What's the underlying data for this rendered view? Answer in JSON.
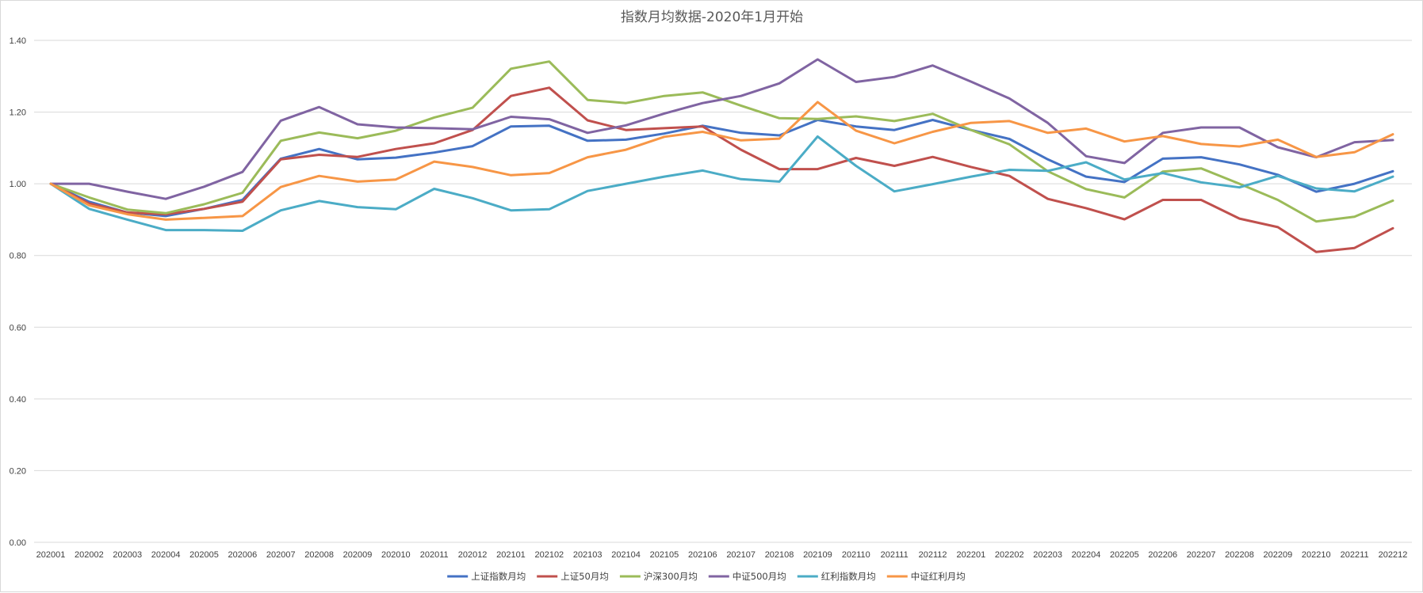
{
  "chart_data": {
    "type": "line",
    "title": "指数月均数据-2020年1月开始",
    "xlabel": "",
    "ylabel": "",
    "ylim": [
      0,
      1.4
    ],
    "yticks": [
      "0.00",
      "0.20",
      "0.40",
      "0.60",
      "0.80",
      "1.00",
      "1.20",
      "1.40"
    ],
    "ytick_values": [
      0,
      0.2,
      0.4,
      0.6,
      0.8,
      1.0,
      1.2,
      1.4
    ],
    "grid": true,
    "legend_position": "bottom",
    "categories": [
      "202001",
      "202002",
      "202003",
      "202004",
      "202005",
      "202006",
      "202007",
      "202008",
      "202009",
      "202010",
      "202011",
      "202012",
      "202101",
      "202102",
      "202103",
      "202104",
      "202105",
      "202106",
      "202107",
      "202108",
      "202109",
      "202110",
      "202111",
      "202112",
      "202201",
      "202202",
      "202203",
      "202204",
      "202205",
      "202206",
      "202207",
      "202208",
      "202209",
      "202210",
      "202211",
      "202212"
    ],
    "series": [
      {
        "name": "上证指数月均",
        "color": "#4472c4",
        "values": [
          1.0,
          0.95,
          0.92,
          0.91,
          0.93,
          0.955,
          1.07,
          1.097,
          1.068,
          1.073,
          1.087,
          1.105,
          1.16,
          1.162,
          1.12,
          1.123,
          1.14,
          1.162,
          1.142,
          1.135,
          1.178,
          1.16,
          1.15,
          1.178,
          1.15,
          1.125,
          1.068,
          1.02,
          1.005,
          1.07,
          1.074,
          1.054,
          1.025,
          0.978,
          1.0,
          1.035
        ]
      },
      {
        "name": "上证50月均",
        "color": "#c0504d",
        "values": [
          1.0,
          0.945,
          0.92,
          0.915,
          0.93,
          0.95,
          1.068,
          1.081,
          1.075,
          1.097,
          1.113,
          1.15,
          1.245,
          1.268,
          1.177,
          1.15,
          1.155,
          1.16,
          1.095,
          1.041,
          1.041,
          1.072,
          1.05,
          1.075,
          1.047,
          1.022,
          0.958,
          0.932,
          0.901,
          0.955,
          0.955,
          0.903,
          0.879,
          0.81,
          0.821,
          0.876
        ]
      },
      {
        "name": "沪深300月均",
        "color": "#9bbb59",
        "values": [
          1.0,
          0.962,
          0.928,
          0.918,
          0.943,
          0.975,
          1.12,
          1.143,
          1.127,
          1.148,
          1.185,
          1.212,
          1.321,
          1.341,
          1.234,
          1.225,
          1.245,
          1.255,
          1.218,
          1.183,
          1.181,
          1.188,
          1.175,
          1.195,
          1.15,
          1.11,
          1.035,
          0.985,
          0.962,
          1.034,
          1.043,
          1.0,
          0.955,
          0.895,
          0.908,
          0.953
        ]
      },
      {
        "name": "中证500月均",
        "color": "#8064a2",
        "values": [
          1.0,
          1.0,
          0.978,
          0.958,
          0.992,
          1.033,
          1.176,
          1.214,
          1.166,
          1.157,
          1.155,
          1.152,
          1.187,
          1.18,
          1.142,
          1.163,
          1.196,
          1.225,
          1.245,
          1.28,
          1.347,
          1.284,
          1.298,
          1.33,
          1.285,
          1.238,
          1.17,
          1.077,
          1.058,
          1.142,
          1.157,
          1.157,
          1.102,
          1.074,
          1.116,
          1.122
        ]
      },
      {
        "name": "红利指数月均",
        "color": "#4bacc6",
        "values": [
          1.0,
          0.93,
          0.9,
          0.871,
          0.871,
          0.869,
          0.926,
          0.952,
          0.935,
          0.929,
          0.986,
          0.96,
          0.926,
          0.929,
          0.98,
          1.0,
          1.02,
          1.037,
          1.013,
          1.006,
          1.132,
          1.05,
          0.979,
          0.999,
          1.02,
          1.039,
          1.036,
          1.06,
          1.012,
          1.03,
          1.004,
          0.99,
          1.022,
          0.987,
          0.979,
          1.02
        ]
      },
      {
        "name": "中证红利月均",
        "color": "#f79646",
        "values": [
          1.0,
          0.94,
          0.915,
          0.9,
          0.905,
          0.91,
          0.991,
          1.022,
          1.006,
          1.012,
          1.062,
          1.047,
          1.024,
          1.03,
          1.074,
          1.095,
          1.131,
          1.145,
          1.121,
          1.126,
          1.228,
          1.148,
          1.113,
          1.145,
          1.17,
          1.175,
          1.142,
          1.154,
          1.118,
          1.133,
          1.111,
          1.104,
          1.123,
          1.075,
          1.088,
          1.138
        ]
      }
    ]
  }
}
